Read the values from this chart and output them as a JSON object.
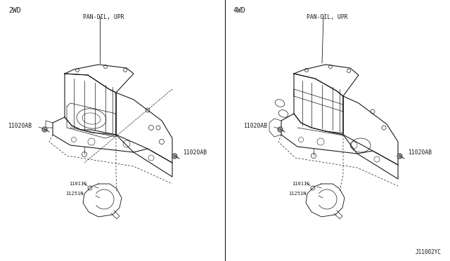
{
  "bg_color": "#ffffff",
  "line_color": "#1a1a1a",
  "text_color": "#1a1a1a",
  "title_2wd": "2WD",
  "title_4wd": "4WD",
  "label_pan_oil_upr": "PAN-OIL, UPR",
  "label_11020ab": "11020AB",
  "label_11011g": "11011G",
  "label_11251n": "11251N",
  "footer": "J11002YC",
  "fig_width": 6.4,
  "fig_height": 3.72,
  "font_size_tiny": 5.0,
  "font_size_small": 5.8,
  "font_size_title": 7.0,
  "font_size_footer": 5.5
}
